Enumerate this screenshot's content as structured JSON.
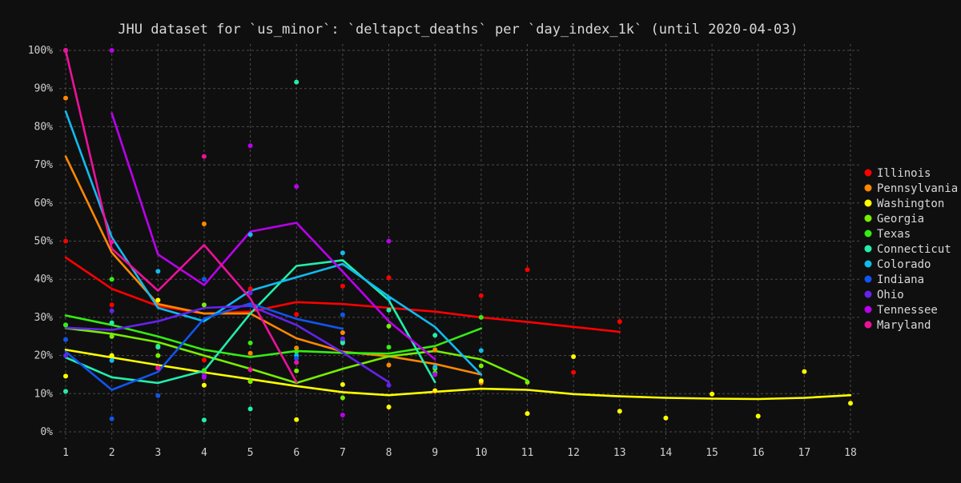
{
  "chart_data": {
    "type": "line",
    "title": "JHU dataset for `us_minor`: `deltapct_deaths` per `day_index_1k` (until 2020-04-03)",
    "xlabel": "",
    "ylabel": "",
    "xlim": [
      1,
      18
    ],
    "ylim": [
      0,
      100
    ],
    "x_ticks": [
      1,
      2,
      3,
      4,
      5,
      6,
      7,
      8,
      9,
      10,
      11,
      12,
      13,
      14,
      15,
      16,
      17,
      18
    ],
    "y_ticks": [
      0,
      10,
      20,
      30,
      40,
      50,
      60,
      70,
      80,
      90,
      100
    ],
    "y_tick_suffix": "%",
    "grid": true,
    "legend_position": "right",
    "background": "#0f0f0f",
    "series": [
      {
        "name": "Illinois",
        "color": "#ff0000",
        "points": [
          [
            1,
            50
          ],
          [
            2,
            33.3
          ],
          [
            3,
            34.5
          ],
          [
            4,
            18.8
          ],
          [
            5,
            37.5
          ],
          [
            6,
            30.8
          ],
          [
            7,
            38.2
          ],
          [
            8,
            40.4
          ],
          [
            9,
            10.6
          ],
          [
            10,
            35.7
          ],
          [
            11,
            42.5
          ],
          [
            12,
            15.6
          ],
          [
            13,
            28.9
          ]
        ],
        "trend": [
          [
            1,
            45.7
          ],
          [
            2,
            37.5
          ],
          [
            3,
            33
          ],
          [
            4,
            31
          ],
          [
            5,
            31.5
          ],
          [
            6,
            34
          ],
          [
            7,
            33.5
          ],
          [
            8,
            32.5
          ],
          [
            9,
            31.5
          ],
          [
            10,
            30
          ],
          [
            11,
            28.8
          ],
          [
            12,
            27.5
          ],
          [
            13,
            26.2
          ]
        ]
      },
      {
        "name": "Pennsylvania",
        "color": "#ff8800",
        "points": [
          [
            1,
            87.5
          ],
          [
            2,
            20
          ],
          [
            3,
            16.7
          ],
          [
            4,
            54.5
          ],
          [
            5,
            20.6
          ],
          [
            6,
            22
          ],
          [
            7,
            26
          ],
          [
            8,
            17.5
          ],
          [
            9,
            21.5
          ],
          [
            10,
            12.9
          ]
        ],
        "trend": [
          [
            1,
            72.2
          ],
          [
            2,
            47
          ],
          [
            3,
            33.5
          ],
          [
            4,
            31
          ],
          [
            5,
            31
          ],
          [
            6,
            24.5
          ],
          [
            7,
            21
          ],
          [
            8,
            19.8
          ],
          [
            9,
            17.8
          ],
          [
            10,
            15
          ]
        ]
      },
      {
        "name": "Washington",
        "color": "#ffff00",
        "points": [
          [
            1,
            14.6
          ],
          [
            2,
            20
          ],
          [
            3,
            34.5
          ],
          [
            4,
            12.2
          ],
          [
            5,
            13.2
          ],
          [
            6,
            3.2
          ],
          [
            7,
            12.4
          ],
          [
            8,
            6.5
          ],
          [
            9,
            10.8
          ],
          [
            10,
            13.4
          ],
          [
            11,
            4.8
          ],
          [
            12,
            19.7
          ],
          [
            13,
            5.4
          ],
          [
            14,
            3.6
          ],
          [
            15,
            9.9
          ],
          [
            16,
            4.1
          ],
          [
            17,
            15.8
          ],
          [
            18,
            7.5
          ]
        ],
        "trend": [
          [
            1,
            21.5
          ],
          [
            2,
            19.5
          ],
          [
            3,
            17.5
          ],
          [
            4,
            15.6
          ],
          [
            5,
            13.8
          ],
          [
            6,
            12
          ],
          [
            7,
            10.4
          ],
          [
            8,
            9.6
          ],
          [
            9,
            10.5
          ],
          [
            10,
            11.3
          ],
          [
            11,
            11
          ],
          [
            12,
            9.9
          ],
          [
            13,
            9.3
          ],
          [
            14,
            8.9
          ],
          [
            15,
            8.7
          ],
          [
            16,
            8.6
          ],
          [
            17,
            8.9
          ],
          [
            18,
            9.6
          ]
        ]
      },
      {
        "name": "Georgia",
        "color": "#77ee00",
        "points": [
          [
            1,
            28
          ],
          [
            2,
            25
          ],
          [
            3,
            20
          ],
          [
            4,
            33.3
          ],
          [
            5,
            13.3
          ],
          [
            6,
            16
          ],
          [
            7,
            8.9
          ],
          [
            8,
            27.7
          ],
          [
            9,
            16.6
          ],
          [
            10,
            17.3
          ],
          [
            11,
            13
          ]
        ],
        "trend": [
          [
            1,
            27.2
          ],
          [
            2,
            25.7
          ],
          [
            3,
            23.5
          ],
          [
            4,
            20
          ],
          [
            5,
            16.5
          ],
          [
            6,
            12.8
          ],
          [
            7,
            16.5
          ],
          [
            8,
            19.8
          ],
          [
            9,
            21.2
          ],
          [
            10,
            19
          ],
          [
            11,
            13.5
          ]
        ]
      },
      {
        "name": "Texas",
        "color": "#33ee11",
        "points": [
          [
            1,
            28
          ],
          [
            2,
            40
          ],
          [
            3,
            22.5
          ],
          [
            4,
            16.1
          ],
          [
            5,
            23.3
          ],
          [
            6,
            21
          ],
          [
            7,
            23.7
          ],
          [
            8,
            22.2
          ],
          [
            9,
            15.5
          ],
          [
            10,
            30
          ]
        ],
        "trend": [
          [
            1,
            30.5
          ],
          [
            2,
            28
          ],
          [
            3,
            25
          ],
          [
            4,
            21.5
          ],
          [
            5,
            19.6
          ],
          [
            6,
            21.2
          ],
          [
            7,
            20.7
          ],
          [
            8,
            20.5
          ],
          [
            9,
            22.5
          ],
          [
            10,
            27.1
          ]
        ]
      },
      {
        "name": "Connecticut",
        "color": "#22eeaa",
        "points": [
          [
            1,
            10.6
          ],
          [
            2,
            28.6
          ],
          [
            3,
            22.2
          ],
          [
            4,
            3.1
          ],
          [
            5,
            6
          ],
          [
            6,
            91.7
          ],
          [
            7,
            23.3
          ],
          [
            8,
            31.9
          ],
          [
            9,
            25.3
          ]
        ],
        "trend": [
          [
            1,
            19.5
          ],
          [
            2,
            14.3
          ],
          [
            3,
            12.8
          ],
          [
            4,
            16
          ],
          [
            5,
            31
          ],
          [
            6,
            43.5
          ],
          [
            7,
            45
          ],
          [
            8,
            34.5
          ],
          [
            9,
            13
          ]
        ]
      },
      {
        "name": "Colorado",
        "color": "#11bbee",
        "points": [
          [
            1,
            100
          ],
          [
            2,
            18.7
          ],
          [
            3,
            42.1
          ],
          [
            4,
            40
          ],
          [
            5,
            51.7
          ],
          [
            6,
            20
          ],
          [
            7,
            46.9
          ],
          [
            8,
            35
          ],
          [
            9,
            17
          ],
          [
            10,
            21.3
          ]
        ],
        "trend": [
          [
            1,
            84
          ],
          [
            2,
            51
          ],
          [
            3,
            32.5
          ],
          [
            4,
            29
          ],
          [
            5,
            37
          ],
          [
            6,
            40.5
          ],
          [
            7,
            44
          ],
          [
            8,
            35.5
          ],
          [
            9,
            27.5
          ],
          [
            10,
            15
          ]
        ]
      },
      {
        "name": "Indiana",
        "color": "#1155ee",
        "points": [
          [
            1,
            24.2
          ],
          [
            2,
            3.4
          ],
          [
            3,
            9.5
          ],
          [
            4,
            40
          ],
          [
            5,
            33.3
          ],
          [
            6,
            19.2
          ],
          [
            7,
            30.7
          ]
        ],
        "trend": [
          [
            1,
            21
          ],
          [
            2,
            11
          ],
          [
            3,
            15.7
          ],
          [
            4,
            29.7
          ],
          [
            5,
            33.7
          ],
          [
            6,
            29.6
          ],
          [
            7,
            27
          ]
        ]
      },
      {
        "name": "Ohio",
        "color": "#6622ee",
        "points": [
          [
            1,
            20
          ],
          [
            2,
            31.7
          ],
          [
            3,
            16.7
          ],
          [
            4,
            14.8
          ],
          [
            5,
            36.4
          ],
          [
            6,
            18.2
          ],
          [
            7,
            24.4
          ],
          [
            8,
            12.2
          ]
        ],
        "trend": [
          [
            1,
            27.3
          ],
          [
            2,
            26.7
          ],
          [
            3,
            29
          ],
          [
            4,
            32.5
          ],
          [
            5,
            33
          ],
          [
            6,
            28
          ],
          [
            7,
            20.8
          ],
          [
            8,
            13
          ]
        ]
      },
      {
        "name": "Tennessee",
        "color": "#bb00ee",
        "points": [
          [
            2,
            100
          ],
          [
            3,
            16.7
          ],
          [
            4,
            14.3
          ],
          [
            5,
            75
          ],
          [
            6,
            64.3
          ],
          [
            7,
            4.4
          ],
          [
            8,
            50
          ],
          [
            9,
            15
          ]
        ],
        "trend": [
          [
            2,
            83.5
          ],
          [
            3,
            46.5
          ],
          [
            4,
            38.5
          ],
          [
            5,
            52.5
          ],
          [
            6,
            54.8
          ],
          [
            7,
            42
          ],
          [
            8,
            29
          ],
          [
            9,
            19
          ]
        ]
      },
      {
        "name": "Maryland",
        "color": "#ee1199",
        "points": [
          [
            1,
            100
          ],
          [
            2,
            49.8
          ],
          [
            3,
            16.7
          ],
          [
            4,
            72.2
          ],
          [
            5,
            16.3
          ],
          [
            6,
            18.2
          ]
        ],
        "trend": [
          [
            1,
            100
          ],
          [
            2,
            48
          ],
          [
            3,
            37
          ],
          [
            4,
            49
          ],
          [
            5,
            35
          ],
          [
            6,
            13
          ]
        ]
      }
    ]
  }
}
